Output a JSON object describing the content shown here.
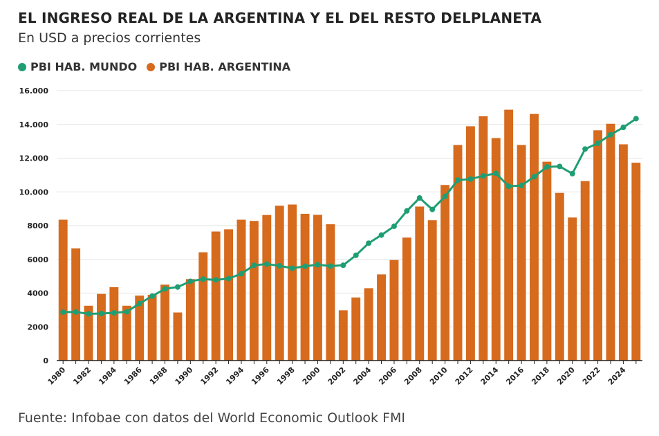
{
  "header": {
    "title": "EL INGRESO REAL DE LA ARGENTINA Y EL DEL RESTO DELPLANETA",
    "subtitle": "En USD a precios corrientes"
  },
  "footer": {
    "source": "Fuente: Infobae con datos del World Economic Outlook FMI"
  },
  "colors": {
    "mundo": "#1f9e74",
    "argentina": "#d66a1d",
    "grid": "#e3e3e3",
    "axis": "#222222"
  },
  "chart_data": {
    "type": "bar",
    "title": "EL INGRESO REAL DE LA ARGENTINA Y EL DEL RESTO DELPLANETA",
    "subtitle": "En USD a precios corrientes",
    "xlabel": "",
    "ylabel": "",
    "ylim": [
      0,
      16000
    ],
    "yticks": [
      0,
      2000,
      4000,
      6000,
      8000,
      10000,
      12000,
      14000,
      16000
    ],
    "ytick_labels": [
      "0",
      "2000",
      "4000",
      "6000",
      "8000",
      "10.000",
      "12.000",
      "14.000",
      "16.000"
    ],
    "xtick_labels": [
      "1980",
      "1982",
      "1984",
      "1986",
      "1988",
      "1990",
      "1992",
      "1994",
      "1996",
      "1998",
      "2000",
      "2002",
      "2004",
      "2006",
      "2008",
      "2010",
      "2012",
      "2014",
      "2016",
      "2018",
      "2020",
      "2022",
      "2024"
    ],
    "legend_position": "top-left",
    "grid": true,
    "categories": [
      1980,
      1981,
      1982,
      1983,
      1984,
      1985,
      1986,
      1987,
      1988,
      1989,
      1990,
      1991,
      1992,
      1993,
      1994,
      1995,
      1996,
      1997,
      1998,
      1999,
      2000,
      2001,
      2002,
      2003,
      2004,
      2005,
      2006,
      2007,
      2008,
      2009,
      2010,
      2011,
      2012,
      2013,
      2014,
      2015,
      2016,
      2017,
      2018,
      2019,
      2020,
      2021,
      2022,
      2023,
      2024,
      2025
    ],
    "series": [
      {
        "name": "PBI HAB. MUNDO",
        "type": "line",
        "values": [
          2870,
          2880,
          2770,
          2790,
          2830,
          2890,
          3380,
          3820,
          4250,
          4360,
          4700,
          4830,
          4780,
          4860,
          5150,
          5650,
          5720,
          5620,
          5470,
          5590,
          5680,
          5600,
          5650,
          6240,
          6960,
          7440,
          7960,
          8870,
          9640,
          8960,
          9730,
          10700,
          10760,
          10950,
          11100,
          10330,
          10380,
          10900,
          11480,
          11510,
          11080,
          12540,
          12880,
          13390,
          13820,
          14340
        ]
      },
      {
        "name": "PBI HAB. ARGENTINA",
        "type": "bar",
        "values": [
          8350,
          6650,
          3250,
          3950,
          4350,
          3250,
          3850,
          3900,
          4500,
          2850,
          4830,
          6420,
          7650,
          7780,
          8350,
          8280,
          8630,
          9180,
          9250,
          8700,
          8640,
          8080,
          2980,
          3740,
          4290,
          5110,
          5960,
          7290,
          9130,
          8320,
          10410,
          12780,
          13890,
          14480,
          13190,
          14870,
          12780,
          14620,
          11790,
          9940,
          8480,
          10640,
          13650,
          14040,
          12820,
          11730
        ]
      }
    ]
  }
}
